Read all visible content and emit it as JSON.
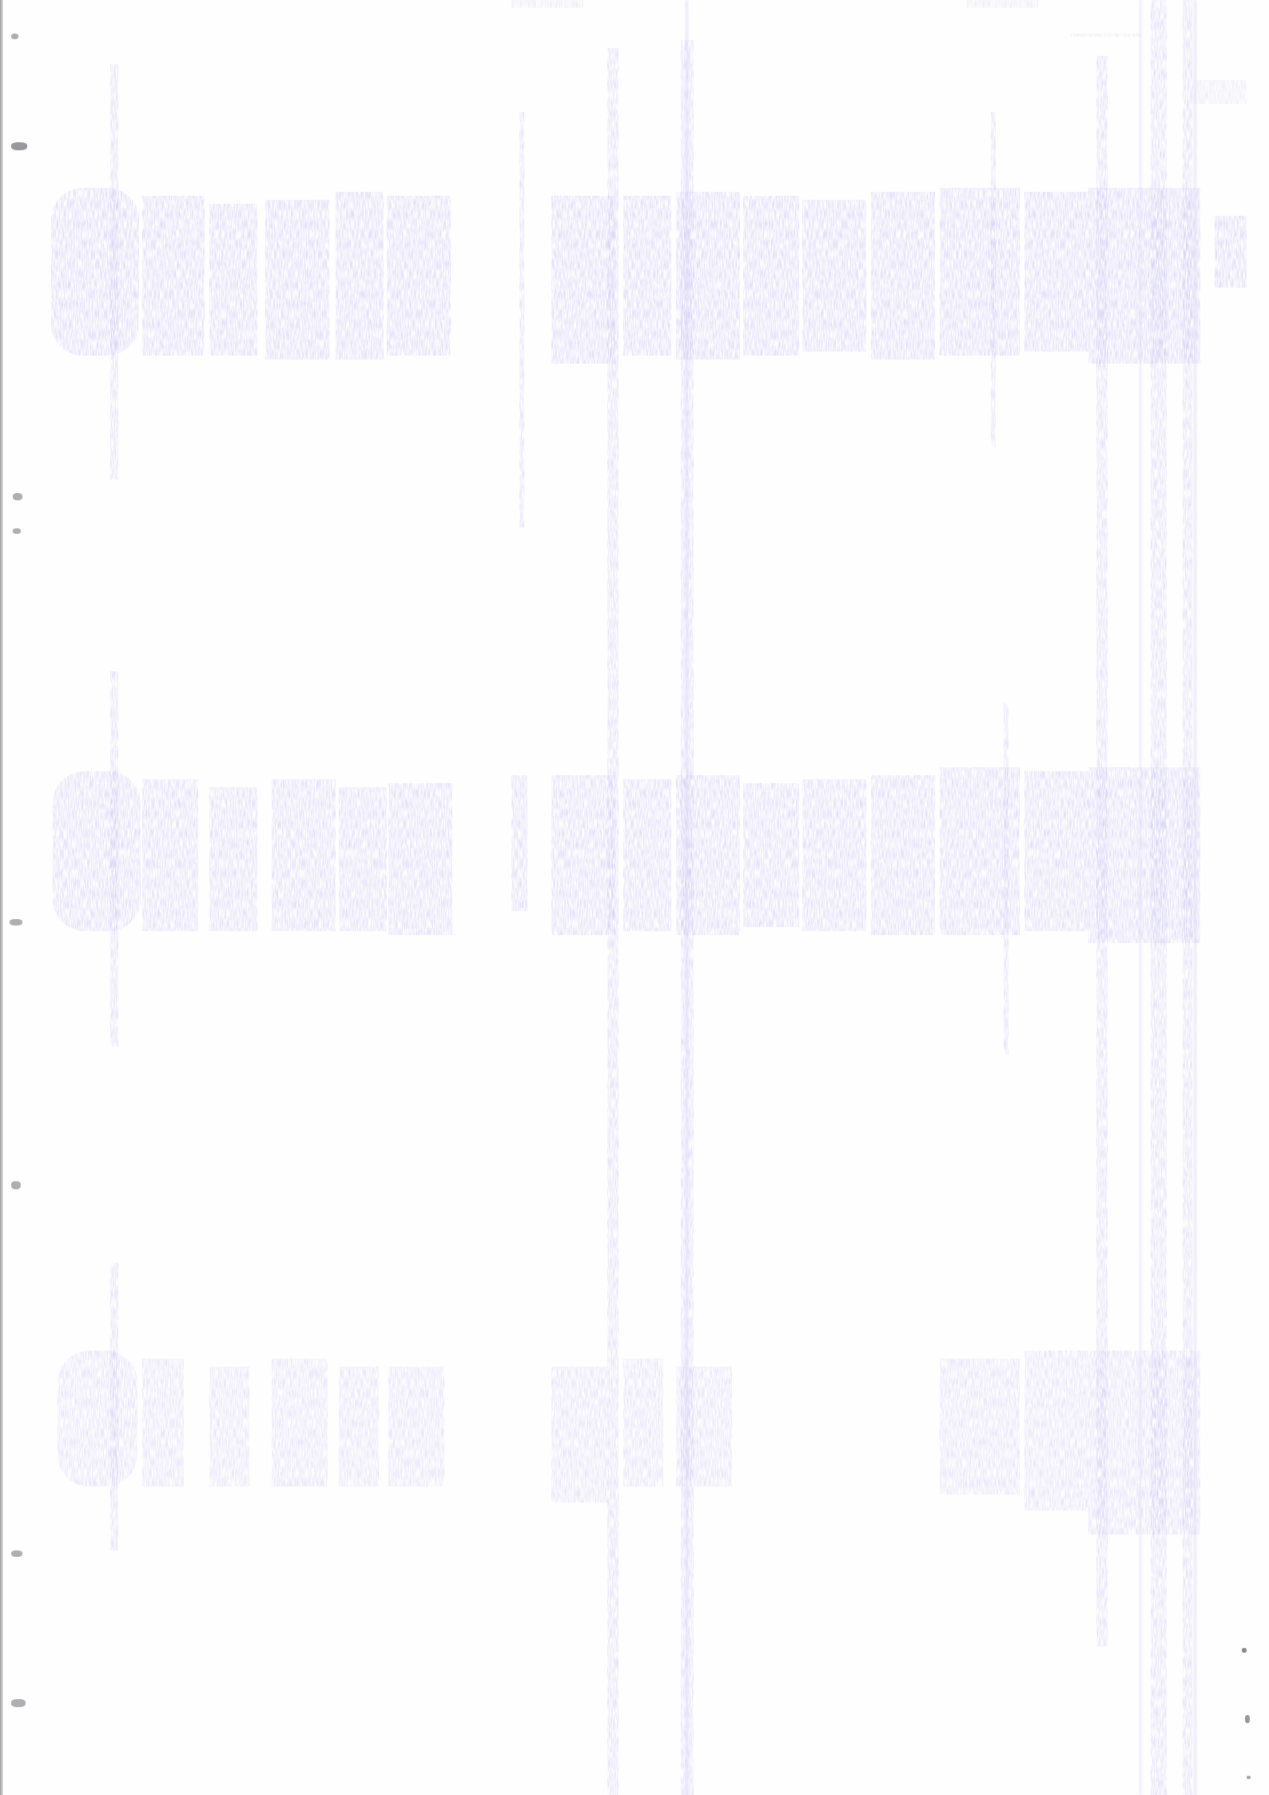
{
  "document": {
    "type": "blank-scanned-page",
    "visible_text": "",
    "bleed_through": {
      "color": "#d8d4f6",
      "bands": 3
    },
    "paper_color": "#fefefe",
    "edge_shadow_color": "#9a9a9a"
  }
}
